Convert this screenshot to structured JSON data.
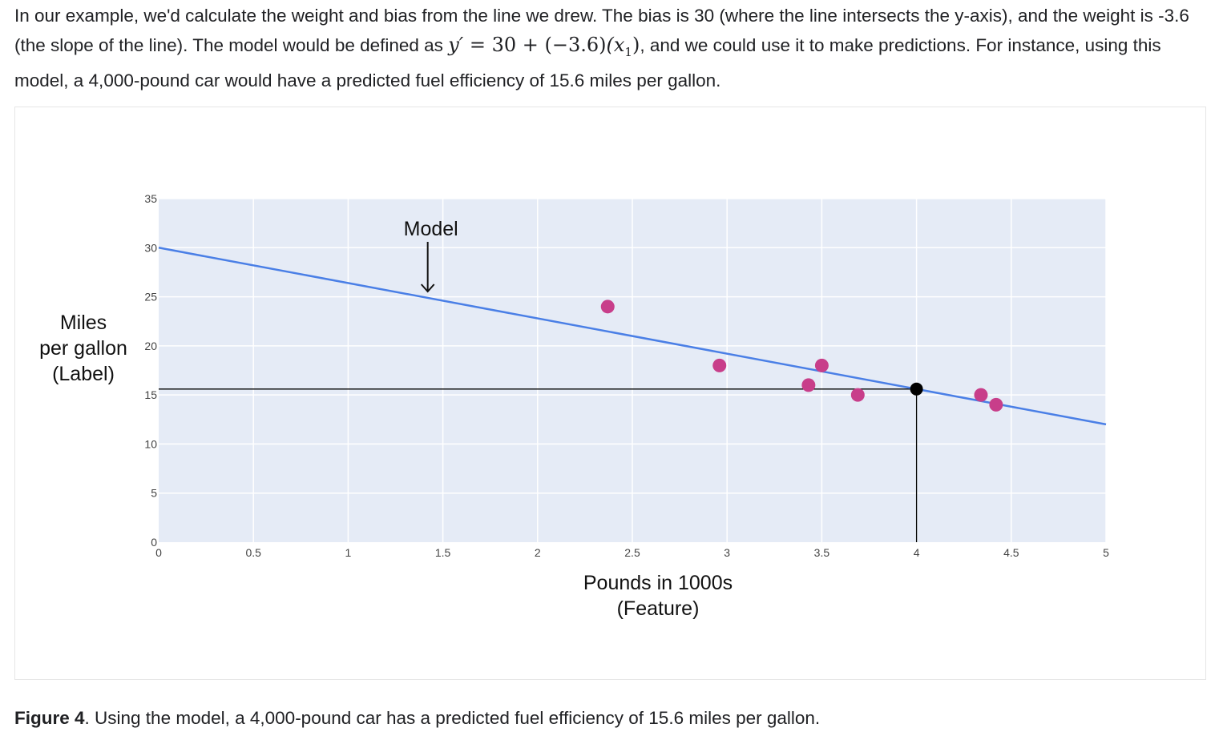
{
  "intro": {
    "part1": "In our example, we'd calculate the weight and bias from the line we drew. The bias is 30 (where the line intersects the y-axis), and the weight is -3.6 (the slope of the line). The model would be defined as ",
    "formula": {
      "lhs": "y′",
      "eq": " = ",
      "bias": "30",
      "plus": " + ",
      "weight": "(−3.6)",
      "feature_open": "(x",
      "feature_sub": "1",
      "feature_close": ")"
    },
    "part2": ", and we could use it to make predictions. For instance, using this model, a 4,000-pound car would have a predicted fuel efficiency of 15.6 miles per gallon."
  },
  "chart_data": {
    "type": "scatter",
    "xlabel_lines": [
      "Pounds in 1000s",
      "(Feature)"
    ],
    "ylabel_lines": [
      "Miles",
      "per gallon",
      "(Label)"
    ],
    "xlim": [
      0,
      5
    ],
    "ylim": [
      0,
      35
    ],
    "xticks": [
      "0",
      "0.5",
      "1",
      "1.5",
      "2",
      "2.5",
      "3",
      "3.5",
      "4",
      "4.5",
      "5"
    ],
    "yticks": [
      "0",
      "5",
      "10",
      "15",
      "20",
      "25",
      "30",
      "35"
    ],
    "grid": true,
    "points": [
      {
        "x": 2.37,
        "y": 24
      },
      {
        "x": 2.96,
        "y": 18
      },
      {
        "x": 3.43,
        "y": 16
      },
      {
        "x": 3.5,
        "y": 18
      },
      {
        "x": 3.69,
        "y": 15
      },
      {
        "x": 4.34,
        "y": 15
      },
      {
        "x": 4.42,
        "y": 14
      }
    ],
    "model_line": {
      "bias": 30,
      "weight": -3.6
    },
    "prediction": {
      "x": 4,
      "y": 15.6
    },
    "annotation": {
      "text": "Model",
      "x": 1.42
    }
  },
  "colors": {
    "plot_bg": "#e5ebf6",
    "grid": "#ffffff",
    "line": "#4a7fe6",
    "point": "#c83e8a",
    "prediction": "#000000"
  },
  "caption": {
    "label": "Figure 4",
    "text": ". Using the model, a 4,000-pound car has a predicted fuel efficiency of 15.6 miles per gallon."
  }
}
